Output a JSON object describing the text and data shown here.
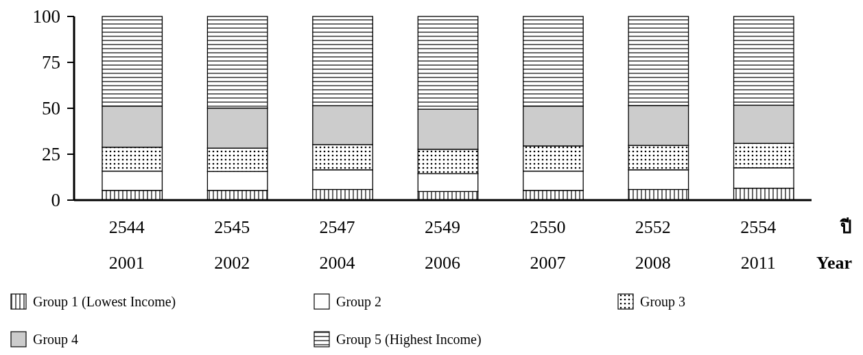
{
  "chart_data": {
    "type": "bar",
    "stacked": true,
    "categories": [
      "2544\n2001",
      "2545\n2002",
      "2547\n2004",
      "2549\n2006",
      "2550\n2007",
      "2552\n2008",
      "2554\n2011"
    ],
    "xlabel": "ปี\nYear",
    "ylim": [
      0,
      100
    ],
    "yticks": [
      0,
      25,
      50,
      75,
      100
    ],
    "legend": "bottom",
    "grid": false,
    "series": [
      {
        "name": "Group 1 (Lowest Income)",
        "color": "#000000",
        "values": [
          5.3,
          5.3,
          5.8,
          4.7,
          5.3,
          5.8,
          6.5
        ]
      },
      {
        "name": "Group 2",
        "color": "#ffffff",
        "values": [
          10.5,
          10.3,
          10.7,
          9.7,
          10.5,
          10.7,
          11.1
        ]
      },
      {
        "name": "Group 3",
        "color": "#000000",
        "values": [
          13,
          12.7,
          13.7,
          13.3,
          13.7,
          13.3,
          13.3
        ]
      },
      {
        "name": "Group 4",
        "color": "#cccccc",
        "values": [
          22.4,
          21.8,
          21.2,
          21.8,
          21.7,
          21.7,
          20.8
        ]
      },
      {
        "name": "Group 5 (Highest Income)",
        "color": "#000000",
        "values": [
          48.8,
          49.9,
          48.6,
          50.5,
          48.8,
          48.5,
          48.3
        ]
      }
    ]
  }
}
